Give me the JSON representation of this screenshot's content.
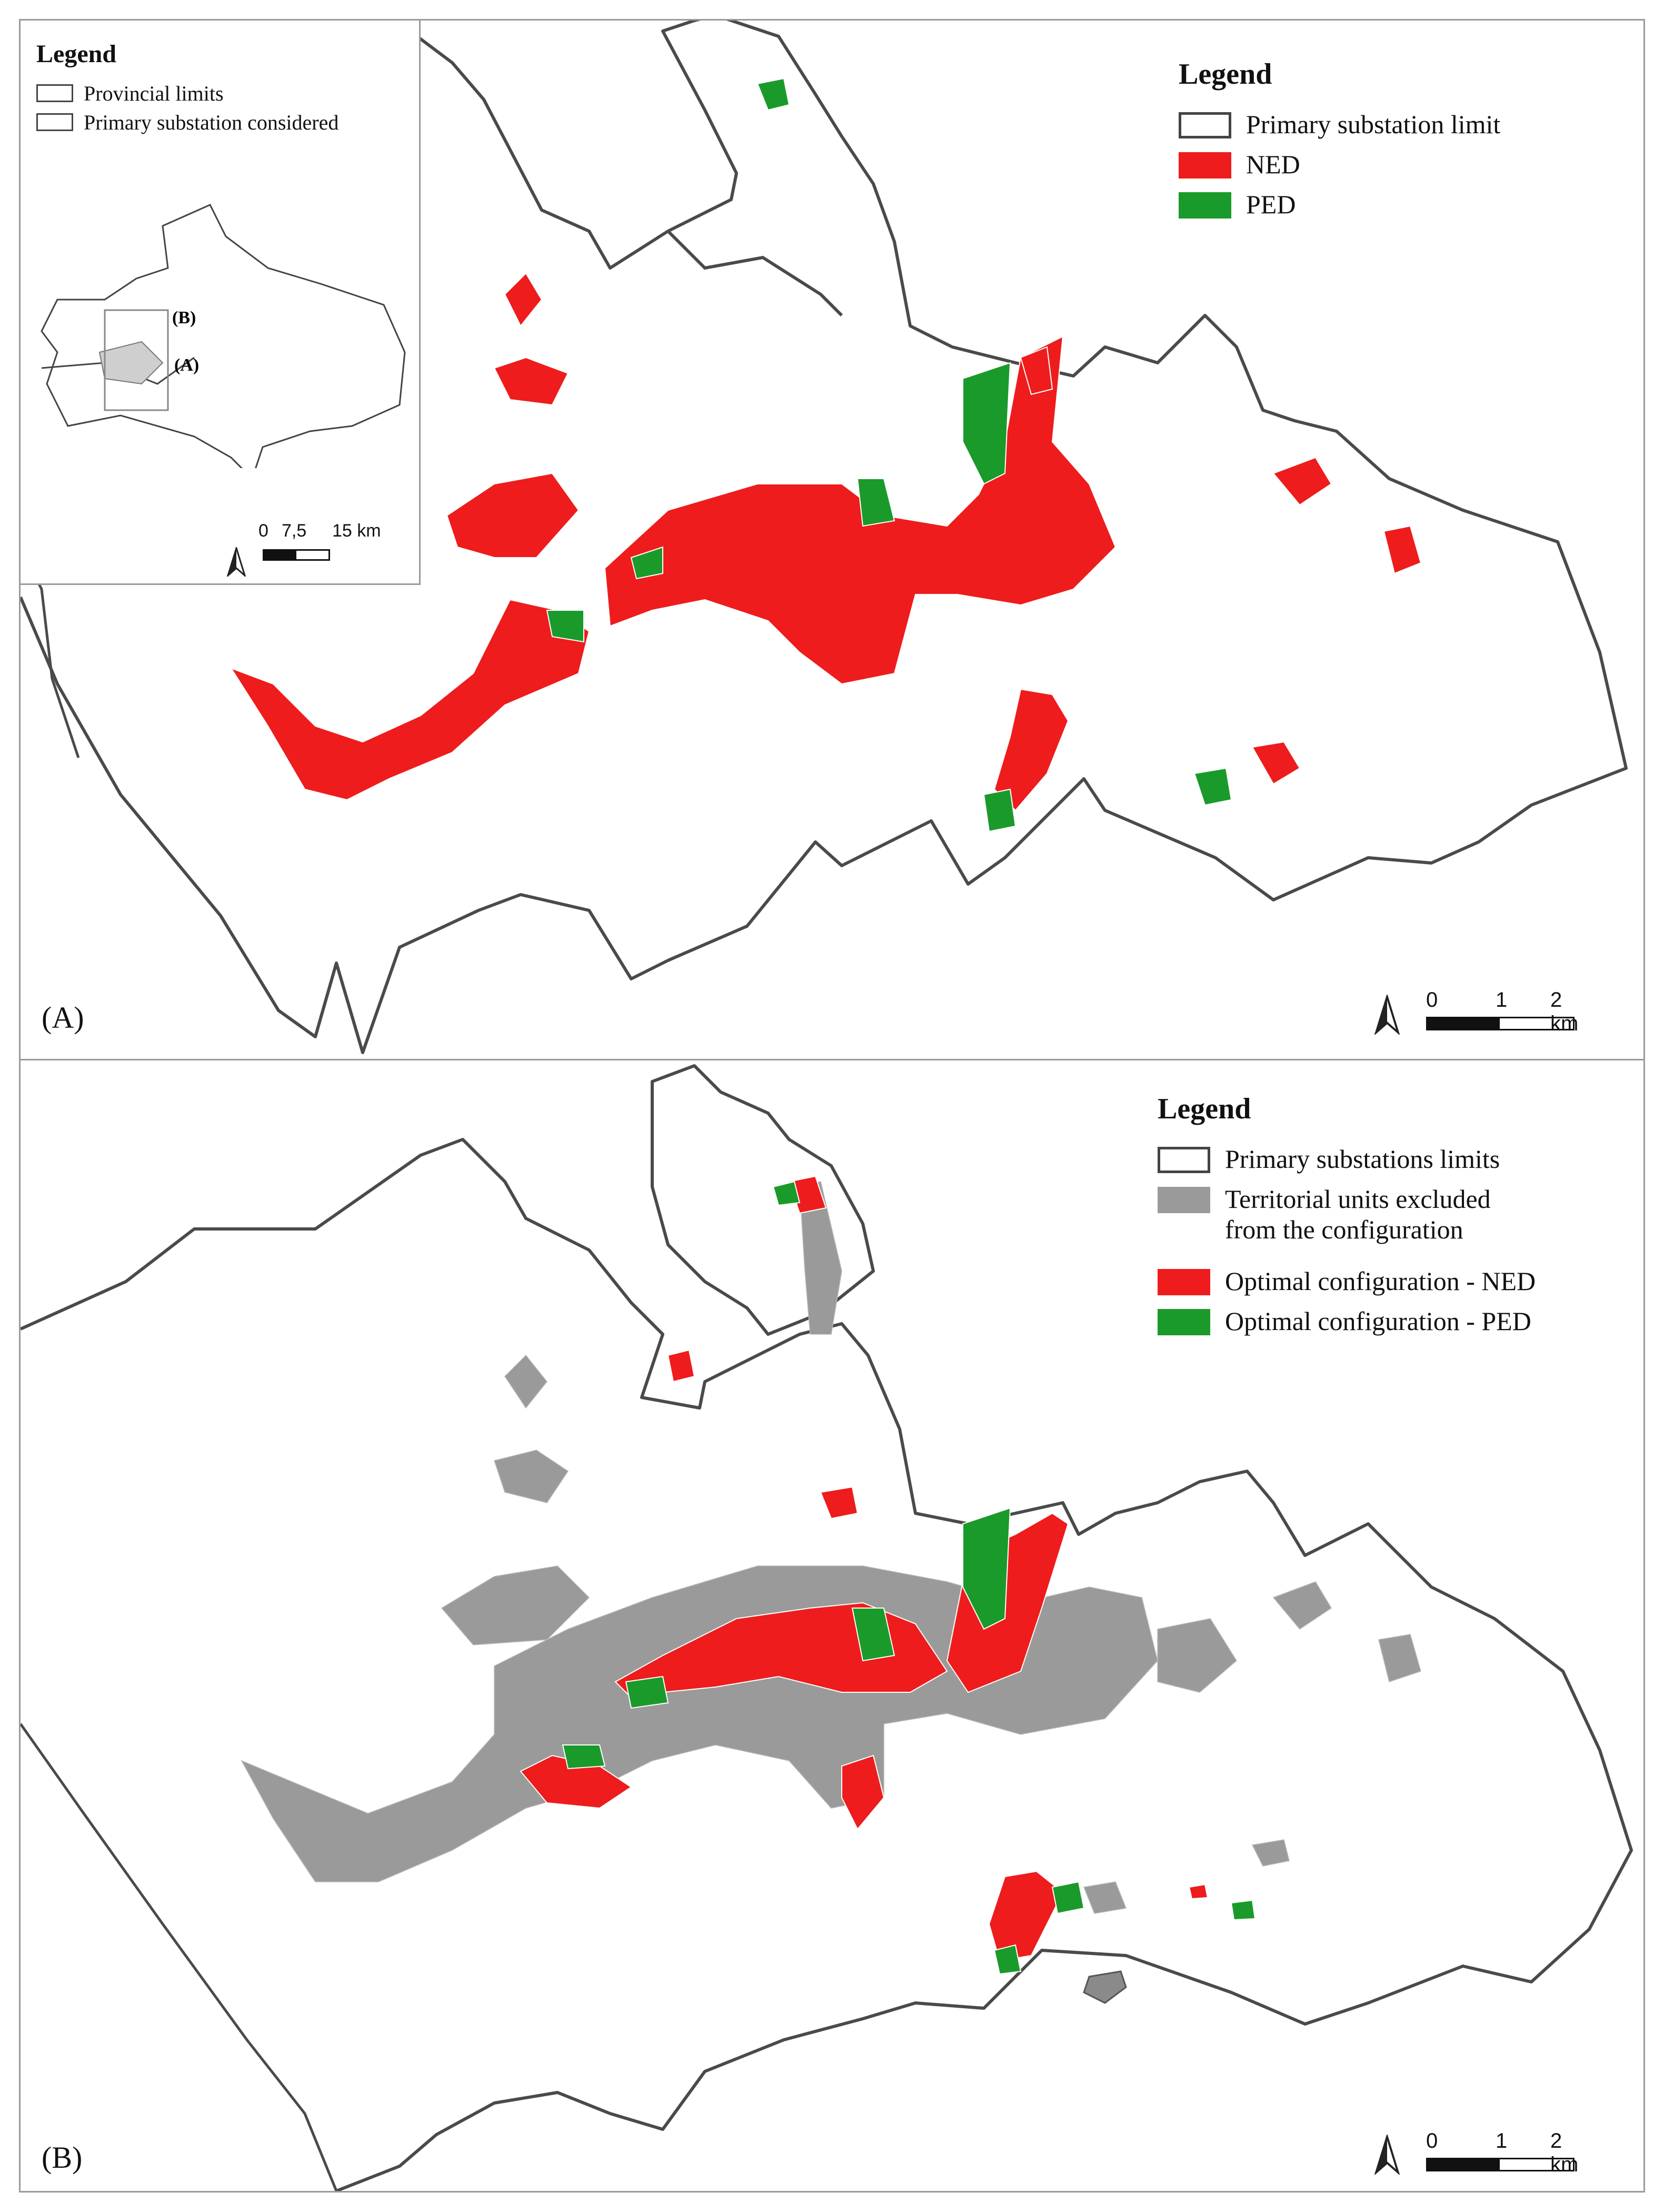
{
  "panel_a": {
    "label": "(A)",
    "legend": {
      "title": "Legend",
      "items": [
        {
          "label": "Primary substation limit",
          "symbol": "outline",
          "color": "#ffffff"
        },
        {
          "label": "NED",
          "symbol": "fill",
          "color": "#ee1c1c"
        },
        {
          "label": "PED",
          "symbol": "fill",
          "color": "#1a9a2a"
        }
      ]
    },
    "scale": {
      "labels": [
        "0",
        "1",
        "2 km"
      ]
    },
    "inset": {
      "legend_title": "Legend",
      "items": [
        {
          "label": "Provincial limits",
          "symbol": "outline"
        },
        {
          "label": "Primary substation considered",
          "symbol": "outline"
        }
      ],
      "frame_labels": [
        "(B)",
        "(A)"
      ],
      "scale_labels": [
        "0",
        "7,5",
        "15 km"
      ]
    }
  },
  "panel_b": {
    "label": "(B)",
    "legend": {
      "title": "Legend",
      "items": [
        {
          "label": "Primary substations limits",
          "symbol": "outline",
          "color": "#ffffff"
        },
        {
          "label": "Territorial units excluded\nfrom the configuration",
          "symbol": "fill",
          "color": "#9a9a9a"
        },
        {
          "label": "Optimal configuration - NED",
          "symbol": "fill",
          "color": "#ee1c1c"
        },
        {
          "label": "Optimal configuration - PED",
          "symbol": "fill",
          "color": "#1a9a2a"
        }
      ]
    },
    "scale": {
      "labels": [
        "0",
        "1",
        "2 km"
      ]
    }
  },
  "colors": {
    "ned": "#ee1c1c",
    "ped": "#1a9a2a",
    "excluded": "#9a9a9a",
    "boundary": "#4a4a4a",
    "frame": "#9a9a9a"
  }
}
